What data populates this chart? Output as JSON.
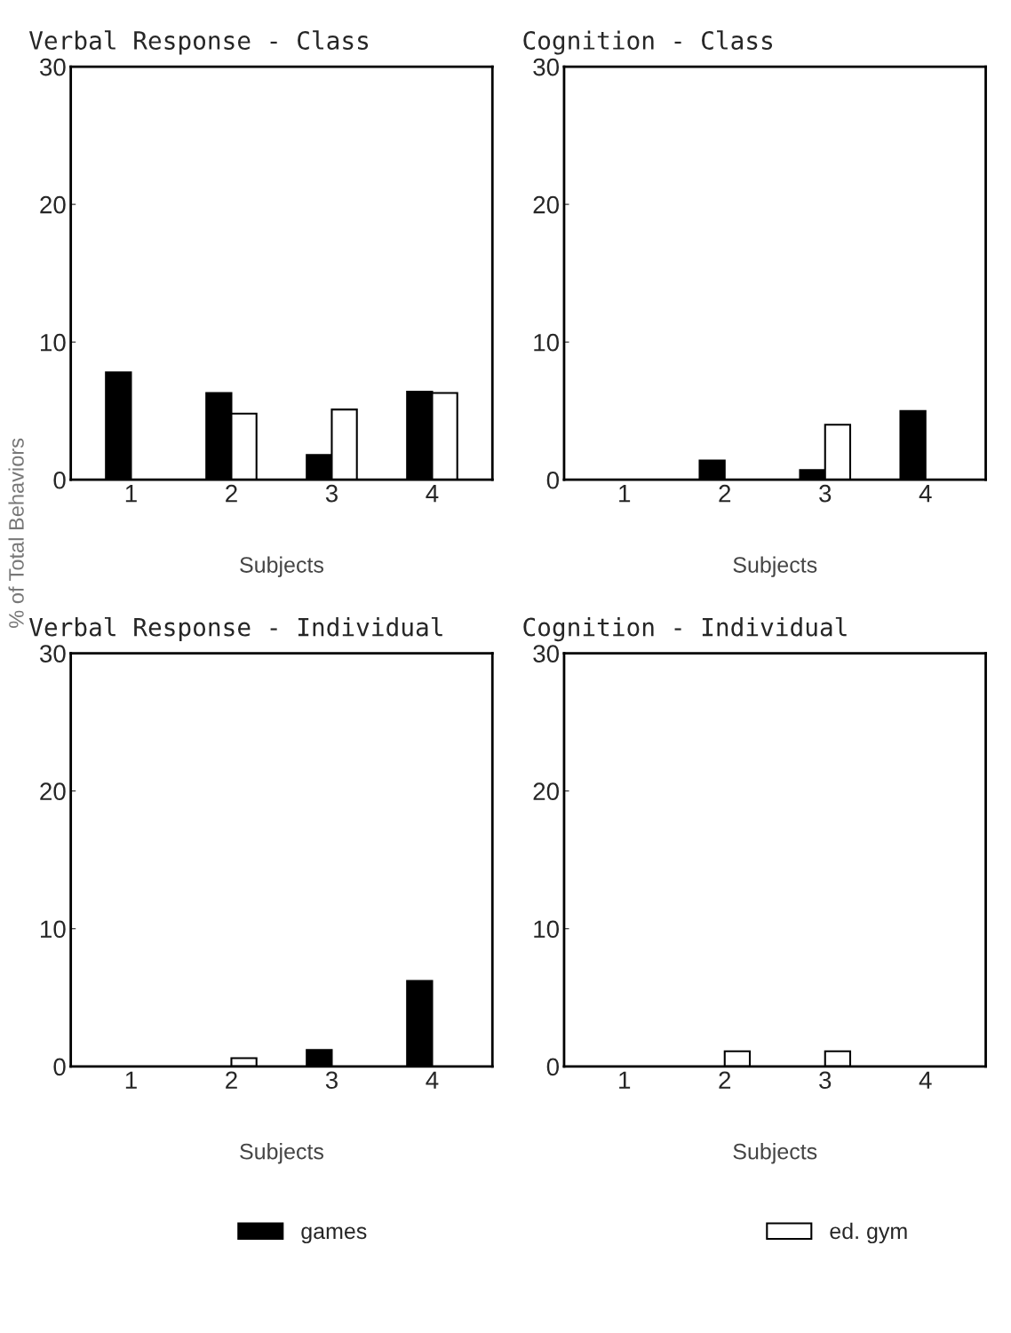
{
  "chart_data": [
    {
      "type": "bar",
      "title": "Verbal Response - Class",
      "xlabel": "Subjects",
      "ylabel": "% of Total Behaviors",
      "categories": [
        "1",
        "2",
        "3",
        "4"
      ],
      "ylim": [
        0,
        30
      ],
      "yticks": [
        0,
        10,
        20,
        30
      ],
      "series": [
        {
          "color": "#000000",
          "values": [
            7.8,
            6.3,
            1.8,
            6.4
          ]
        },
        {
          "color": "#ffffff",
          "values": [
            null,
            4.8,
            5.1,
            6.3
          ]
        }
      ]
    },
    {
      "type": "bar",
      "title": "Cognition - Class",
      "xlabel": "Subjects",
      "categories": [
        "1",
        "2",
        "3",
        "4"
      ],
      "ylim": [
        0,
        30
      ],
      "yticks": [
        0,
        10,
        20,
        30
      ],
      "series": [
        {
          "color": "#000000",
          "values": [
            null,
            1.4,
            0.7,
            5.0
          ]
        },
        {
          "color": "#ffffff",
          "values": [
            null,
            null,
            4.0,
            null
          ]
        }
      ]
    },
    {
      "type": "bar",
      "title": "Verbal Response - Individual",
      "xlabel": "Subjects",
      "categories": [
        "1",
        "2",
        "3",
        "4"
      ],
      "ylim": [
        0,
        30
      ],
      "yticks": [
        0,
        10,
        20,
        30
      ],
      "legend": "bottom",
      "series": [
        {
          "name": "games",
          "color": "#000000",
          "values": [
            null,
            null,
            1.2,
            6.2
          ]
        },
        {
          "name": "ed. gym",
          "color": "#ffffff",
          "values": [
            null,
            0.6,
            null,
            null
          ]
        }
      ]
    },
    {
      "type": "bar",
      "title": "Cognition - Individual",
      "xlabel": "Subjects",
      "categories": [
        "1",
        "2",
        "3",
        "4"
      ],
      "ylim": [
        0,
        30
      ],
      "yticks": [
        0,
        10,
        20,
        30
      ],
      "series": [
        {
          "color": "#000000",
          "values": [
            null,
            null,
            null,
            null
          ]
        },
        {
          "color": "#ffffff",
          "values": [
            null,
            1.1,
            1.1,
            null
          ]
        }
      ]
    }
  ]
}
